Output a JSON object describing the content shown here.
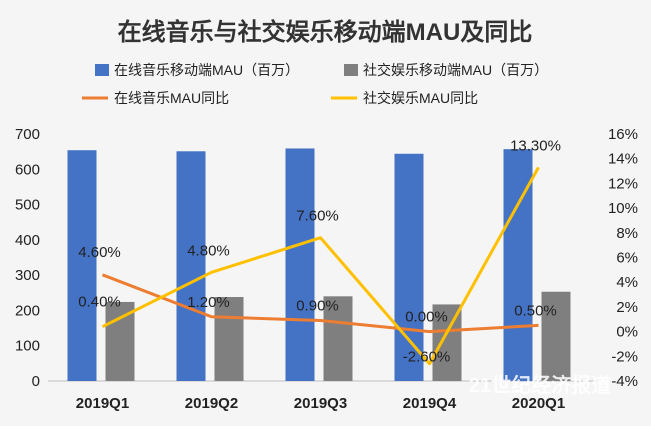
{
  "chart_data": {
    "type": "bar",
    "title": "在线音乐与社交娱乐移动端MAU及同比",
    "categories": [
      "2019Q1",
      "2019Q2",
      "2019Q3",
      "2019Q4",
      "2020Q1"
    ],
    "bar_series": [
      {
        "name": "在线音乐移动端MAU（百万）",
        "color": "#4472c4",
        "values": [
          654,
          651,
          659,
          644,
          657
        ]
      },
      {
        "name": "社交娱乐移动端MAU（百万）",
        "color": "#7f7f7f",
        "values": [
          224,
          238,
          240,
          217,
          253
        ]
      }
    ],
    "line_series": [
      {
        "name": "在线音乐MAU同比",
        "color": "#ed7d31",
        "values": [
          4.6,
          1.2,
          0.9,
          0.0,
          0.5
        ],
        "labels": [
          "4.60%",
          "1.20%",
          "0.90%",
          "0.00%",
          "0.50%"
        ]
      },
      {
        "name": "社交娱乐MAU同比",
        "color": "#ffc000",
        "values": [
          0.4,
          4.8,
          7.6,
          -2.6,
          13.3
        ],
        "labels": [
          "0.40%",
          "4.80%",
          "7.60%",
          "-2.60%",
          "13.30%"
        ]
      }
    ],
    "y_left": {
      "min": 0,
      "max": 700,
      "ticks": [
        "0",
        "100",
        "200",
        "300",
        "400",
        "500",
        "600",
        "700"
      ]
    },
    "y_right": {
      "min": -4,
      "max": 16,
      "ticks": [
        "-4%",
        "-2%",
        "0%",
        "2%",
        "4%",
        "6%",
        "8%",
        "10%",
        "12%",
        "14%",
        "16%"
      ]
    },
    "legend_position": "top"
  },
  "watermark": "21世纪经济报道"
}
